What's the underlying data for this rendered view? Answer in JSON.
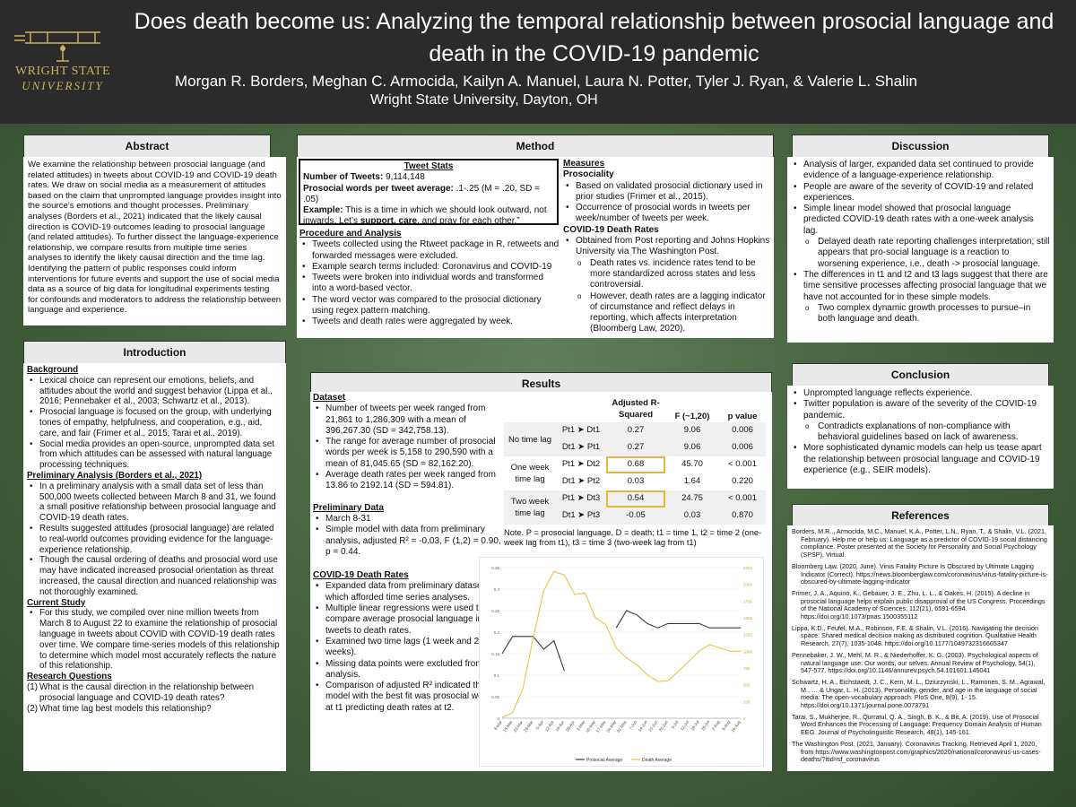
{
  "header": {
    "title": "Does death become us: Analyzing the temporal relationship between prosocial language and death in the COVID-19 pandemic",
    "authors": "Morgan R. Borders, Meghan C. Armocida, Kailyn A. Manuel, Laura N. Potter, Tyler J. Ryan, & Valerie L. Shalin",
    "affiliation": "Wright State University, Dayton, OH",
    "logo_line1": "WRIGHT STATE",
    "logo_line2": "UNIVERSITY"
  },
  "abstract": {
    "title": "Abstract",
    "text": "We examine the relationship between prosocial language (and related attitudes) in tweets about COVID-19 and COVID-19 death rates. We draw on social media as a measurement of attitudes based on the claim that unprompted language provides insight into the source’s emotions and thought processes. Preliminary analyses (Borders et al., 2021) indicated that the likely causal direction is COVID-19 outcomes leading to prosocial language (and related attitudes). To further dissect the language-experience relationship, we compare results from multiple time series analyses to identify the likely causal direction and the time lag. Identifying the pattern of public responses could inform interventions for future events and support the use of social media data as a source of big data for longitudinal experiments testing for confounds and moderators to address the relationship between language and experience."
  },
  "introduction": {
    "title": "Introduction",
    "background_heading": "Background",
    "background": [
      "Lexical choice can represent our emotions, beliefs, and attitudes about the world and suggest behavior (Lippa et al., 2016; Pennebaker et al., 2003; Schwartz et al., 2013).",
      "Prosocial language is focused on the group, with underlying tones of empathy, helpfulness, and cooperation, e.g., aid, care, and fair (Frimer et al., 2015; Tarai et al., 2019).",
      "Social media provides an open-source, unprompted data set from which attitudes can be assessed with natural language processing techniques."
    ],
    "prelim_heading": "Preliminary Analysis (Borders et al., 2021)",
    "prelim": [
      "In a preliminary analysis with a small data set of less than 500,000 tweets collected between March 8 and 31, we found a small positive relationship between prosocial language and COVID-19 death rates.",
      "Results suggested attitudes (prosocial language) are related to real-world outcomes providing evidence for the language-experience relationship.",
      "Though the causal ordering of deaths and prosocial word use may have indicated increased prosocial orientation as threat increased, the causal direction and nuanced relationship was not thoroughly examined."
    ],
    "current_heading": "Current Study",
    "current": [
      "For this study, we compiled over nine million tweets from March 8 to August 22 to examine the relationship of prosocial language in tweets about COVID with COVID-19 death rates over time. We compare time-series models of this relationship to determine which model most accurately reflects the nature of this relationship."
    ],
    "rq_heading": "Research Questions",
    "rq": [
      {
        "n": "(1)",
        "t": "What is the causal direction in the relationship between prosocial language and COVID-19 death rates?"
      },
      {
        "n": "(2)",
        "t": "What time lag best models this relationship?"
      }
    ]
  },
  "method": {
    "title": "Method",
    "stats_title": "Tweet Stats",
    "n_label": "Number of Tweets:",
    "n_value": "9,114,148",
    "pw_label": "Prosocial words per tweet average:",
    "pw_value": ".1-.25 (M = .20, SD = .05)",
    "ex_label": "Example:",
    "ex_text": "This is a time in which we should look outward, not inwards. Let’s",
    "ex_bold": "support, care",
    "ex_end": ", and pray for each other.”",
    "proc_heading": "Procedure and Analysis",
    "proc": [
      "Tweets collected using the Rtweet package in R, retweets and forwarded messages were excluded.",
      "Example search terms included: Coronavirus and COVID-19",
      "Tweets were broken into individual words and transformed into a word-based vector.",
      "The word vector was compared to the prosocial dictionary using regex pattern matching.",
      "Tweets and death rates were aggregated by week."
    ],
    "measures_heading": "Measures",
    "prosociality_heading": "Prosociality",
    "prosociality": [
      "Based on validated prosocial dictionary used in prior studies (Frimer et al., 2015).",
      "Occurrence of prosocial words in tweets per week/number of tweets per week."
    ],
    "deaths_heading": "COVID-19 Death Rates",
    "deaths": [
      "Obtained from Post reporting and Johns Hopkins University via The Washington Post."
    ],
    "deaths_sub": [
      "Death rates vs. incidence rates tend to be more standardized across states and less controversial.",
      "However, death rates are a lagging indicator of circumstance and reflect delays in reporting, which affects interpretation (Bloomberg Law, 2020)."
    ]
  },
  "discussion": {
    "title": "Discussion",
    "items": [
      {
        "t": "Analysis of larger, expanded data set continued to provide evidence of a language-experience relationship.",
        "s": false
      },
      {
        "t": "People are aware of the severity of COVID-19 and related experiences.",
        "s": false
      },
      {
        "t": "Simple linear model showed that prosocial language predicted COVID-19 death rates with a one-week analysis lag.",
        "s": false
      },
      {
        "t": "Delayed death rate reporting challenges interpretation; still appears that pro-social language is a reaction to worsening experience, i.e., death -> prosocial language.",
        "s": true
      },
      {
        "t": "The differences in t1 and t2 and t3 lags suggest that there are time sensitive processes affecting prosocial language that we have not accounted for in these simple models.",
        "s": false
      },
      {
        "t": "Two complex dynamic growth processes to pursue–in both language and death.",
        "s": true
      }
    ]
  },
  "results": {
    "title": "Results",
    "dataset_heading": "Dataset",
    "dataset": [
      "Number of tweets per week ranged from 21,861 to 1,286,309 with a mean of 396,267.30 (SD = 342,758.13).",
      "The range for average number of prosocial words per week is 5,158 to 290,590 with a mean of 81,045.65 (SD = 82,162.20).",
      "Average death rates per week ranged from 13.86 to 2192.14 (SD = 594.81)."
    ],
    "prelim_heading": "Preliminary Data",
    "prelim": [
      "March 8-31",
      "Simple model with data from preliminary analysis, adjusted R² = -0.03, F (1,2) = 0.90, p = 0.44."
    ],
    "deaths_heading": "COVID-19 Death Rates",
    "deaths": [
      "Expanded data from preliminary dataset, which afforded time series analyses.",
      "Multiple linear regressions were used to compare average prosocial language in tweets to death rates.",
      "Examined two time lags (1 week and 2 weeks).",
      "Missing data points were excluded from analysis.",
      "Comparison of adjusted R² indicated that the model with the best fit was prosocial words at t1 predicting death rates at t2."
    ],
    "table": {
      "h1": "Adjusted R-",
      "h1b": "Squared",
      "h2": "F (~1,20)",
      "h3": "p value",
      "groups": [
        {
          "label": "No time lag",
          "rows": [
            {
              "m": "Pt1 ➤ Dt1",
              "r2": "0.27",
              "f": "9.06",
              "p": "0.006"
            },
            {
              "m": "Dt1 ➤ Pt1",
              "r2": "0.27",
              "f": "9.06",
              "p": "0.006"
            }
          ]
        },
        {
          "label": "One week time lag",
          "rows": [
            {
              "m": "Pt1 ➤ Dt2",
              "r2": "0.68",
              "f": "45.70",
              "p": "< 0.001"
            },
            {
              "m": "Dt1 ➤ Pt2",
              "r2": "0.03",
              "f": "1.64",
              "p": "0.220"
            }
          ]
        },
        {
          "label": "Two week time lag",
          "rows": [
            {
              "m": "Pt1 ➤ Dt3",
              "r2": "0.54",
              "f": "24.75",
              "p": "< 0.001"
            },
            {
              "m": "Dt1 ➤ Pt3",
              "r2": "-0.05",
              "f": "0.03",
              "p": "0.870"
            }
          ]
        }
      ]
    },
    "note": "Note. P = prosocial language, D = death; t1 = time 1, t2 = time 2 (one-week lag from t1), t3 = time 3 (two-week lag from t1)"
  },
  "conclusion": {
    "title": "Conclusion",
    "items": [
      {
        "t": "Unprompted language reflects experience.",
        "s": false
      },
      {
        "t": "Twitter population is aware of the severity of the COVID-19 pandemic.",
        "s": false
      },
      {
        "t": "Contradicts explanations of non-compliance with behavioral guidelines based on lack of awareness.",
        "s": true
      },
      {
        "t": "More sophisticated dynamic models can help us tease apart the relationship between prosocial language and COVID-19 experience (e.g., SEIR models).",
        "s": false
      }
    ]
  },
  "references": {
    "title": "References",
    "items": [
      "Borders, M.R.., Armocida, M.C., Manuel, K.A., Potter, L.N., Ryan, T.. & Shalin, V.L. (2021, February). Help me or help us: Language as a predictor of COVID-19 social distancing compliance. Poster presented at the Society for Personality and Social Psychology (SPSP), Virtual.",
      "Bloomberg Law. (2020, June). Virus Fatality Picture Is Obscured by Ultimate Lagging Indicator (Correct). https://news.bloomberglaw.com/coronavirus/virus-fatality-picture-is-obscured-by-ultimate-lagging-indicator",
      "Frimer, J. A., Aquino, K., Gebauer, J. E., Zhu, L. L., & Oakes, H. (2015). A decline in prosocial language helps explain public disapproval of the US Congress. Proceedings of the National Academy of Sciences, 112(21), 6591-6594. https://doi.org/10.1073/pnas.1500355112",
      "Lippa, K.D., Feufel, M.A., Robinson, F.E. & Shalin, V.L. (2016). Navigating the decision space: Shared medical decision making as distributed cognition. Qualitative Health Research, 27(7), 1035-1048. https://doi.org/10.1177/1049732316665347",
      "Pennebaker, J. W., Mehl, M. R., & Niederhoffer, K. G. (2003). Psychological aspects of natural language use: Our words, our selves. Annual Review of Psychology, 54(1), 547-577. https://doi.org/10.1146/annurev.psych.54.101601.145041",
      "Schwartz, H. A., Eichstaedt, J. C., Kern, M. L., Dziurzynski, L., Ramones, S. M., Agrawal, M., … & Ungar, L. H. (2013). Personality, gender, and age in the language of social media: The open-vocabulary approach. PloS One, 8(9), 1- 15. https://doi.org/10.1371/journal.pone.0073791",
      "Tarai, S., Mukherjee, R., Qurratul, Q. A., Singh, B. K., & Bit, A. (2019). Use of Prosocial Word Enhances the Processing of Language: Frequency Domain Analysis of Human EEG. Journal of Psycholinguistic Research, 48(1), 145-161.",
      "The Washington Post. (2021, January). Coronavirus Tracking. Retrieved April 1, 2020, from https://www.washingtonpost.com/graphics/2020/national/coronavirus-us-cases-deaths/?itid=sf_coronavirus"
    ]
  },
  "colors": {
    "prosocial": "#3a3a3a",
    "death": "#e8c547",
    "highlight": "#e0b93a"
  },
  "chart_data": {
    "type": "line",
    "categories": [
      "8-Mar",
      "15-Mar",
      "22-Mar",
      "29-Mar",
      "5-Apr",
      "12-Apr",
      "19-Apr",
      "26-Apr",
      "3-May",
      "10-May",
      "17-May",
      "24-May",
      "31-May",
      "7-Jun",
      "14-Jun",
      "21-Jun",
      "28-Jun",
      "5-Jul",
      "12-Jul",
      "19-Jul",
      "26-Jul",
      "2-Aug",
      "9-Aug",
      "16-Aug"
    ],
    "yleft_ticks": [
      "0",
      "0.05",
      "0.1",
      "0.15",
      "0.2",
      "0.25",
      "0.3",
      "0.35"
    ],
    "yright_ticks": [
      "0",
      "250",
      "500",
      "750",
      "1000",
      "1250",
      "1500",
      "1750",
      "2000",
      "2250"
    ],
    "ylim": [
      0,
      0.35
    ],
    "ylim_right": [
      0,
      2250
    ],
    "series": [
      {
        "name": "Prosocial Average",
        "axis": "left",
        "values": [
          0.15,
          0.19,
          0.19,
          0.19,
          0.16,
          0.18,
          0.11,
          null,
          null,
          null,
          null,
          0.21,
          0.25,
          0.24,
          0.22,
          0.21,
          0.22,
          0.22,
          0.22,
          0.22,
          0.21,
          0.21,
          0.21,
          0.21
        ]
      },
      {
        "name": "Death Average",
        "axis": "right",
        "values": [
          14,
          80,
          440,
          1200,
          1900,
          2192,
          2140,
          1850,
          1870,
          1500,
          1400,
          1050,
          900,
          800,
          650,
          550,
          560,
          700,
          850,
          1000,
          1100,
          1050,
          1000,
          1000
        ]
      }
    ]
  }
}
